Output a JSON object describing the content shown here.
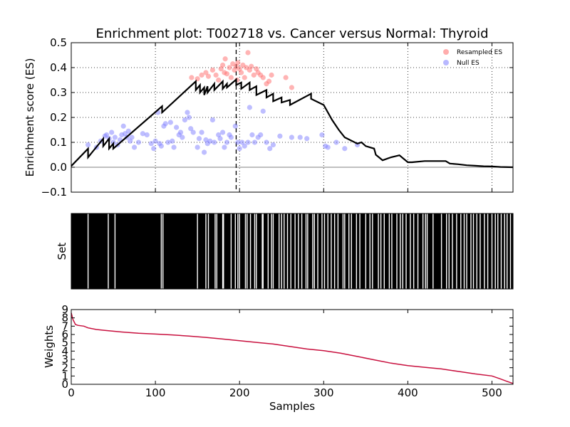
{
  "chart_data": [
    {
      "type": "line",
      "title": "Enrichment plot: T002718 vs. Cancer versus Normal: Thyroid",
      "ylabel": "Enrichment score (ES)",
      "xlim": [
        0,
        525
      ],
      "ylim": [
        -0.1,
        0.5
      ],
      "y_ticks": [
        "−0.1",
        "0.0",
        "0.1",
        "0.2",
        "0.3",
        "0.4",
        "0.5"
      ],
      "grid": true,
      "legend": {
        "placement": "top-right",
        "entries": [
          "Resampled ES",
          "Null ES"
        ]
      },
      "colors": {
        "es_line": "#000000",
        "resampled": "#ff6a6a",
        "null": "#7d7dff",
        "zero_line": "#808080"
      },
      "peak_x": 196,
      "series": [
        {
          "name": "",
          "x": [
            0,
            20,
            20,
            38,
            38,
            45,
            45,
            50,
            50,
            108,
            108,
            148,
            148,
            153,
            153,
            158,
            158,
            162,
            162,
            170,
            170,
            180,
            180,
            185,
            185,
            196,
            196,
            202,
            202,
            212,
            212,
            220,
            220,
            232,
            232,
            240,
            240,
            250,
            250,
            260,
            260,
            285,
            285,
            300,
            310,
            318,
            325,
            340,
            345,
            350,
            360,
            362,
            370,
            380,
            390,
            400,
            405,
            420,
            430,
            435,
            445,
            450,
            460,
            470,
            480,
            490,
            500,
            510,
            525
          ],
          "y": [
            0.005,
            0.075,
            0.04,
            0.115,
            0.085,
            0.115,
            0.075,
            0.095,
            0.075,
            0.245,
            0.22,
            0.345,
            0.31,
            0.33,
            0.3,
            0.32,
            0.29,
            0.325,
            0.3,
            0.335,
            0.31,
            0.345,
            0.315,
            0.335,
            0.32,
            0.352,
            0.33,
            0.34,
            0.315,
            0.34,
            0.31,
            0.325,
            0.29,
            0.31,
            0.28,
            0.295,
            0.265,
            0.28,
            0.26,
            0.27,
            0.25,
            0.295,
            0.275,
            0.25,
            0.19,
            0.15,
            0.12,
            0.095,
            0.1,
            0.085,
            0.075,
            0.05,
            0.028,
            0.04,
            0.048,
            0.02,
            0.02,
            0.025,
            0.025,
            0.025,
            0.025,
            0.015,
            0.012,
            0.008,
            0.006,
            0.004,
            0.003,
            0.001,
            0.0
          ]
        }
      ],
      "resampled_es": [
        [
          143,
          0.36
        ],
        [
          150,
          0.355
        ],
        [
          155,
          0.37
        ],
        [
          160,
          0.38
        ],
        [
          163,
          0.365
        ],
        [
          168,
          0.39
        ],
        [
          172,
          0.37
        ],
        [
          175,
          0.35
        ],
        [
          178,
          0.395
        ],
        [
          180,
          0.41
        ],
        [
          182,
          0.38
        ],
        [
          183,
          0.435
        ],
        [
          185,
          0.375
        ],
        [
          188,
          0.4
        ],
        [
          190,
          0.36
        ],
        [
          192,
          0.415
        ],
        [
          194,
          0.39
        ],
        [
          196,
          0.405
        ],
        [
          197,
          0.35
        ],
        [
          198,
          0.42
        ],
        [
          200,
          0.395
        ],
        [
          202,
          0.38
        ],
        [
          204,
          0.41
        ],
        [
          206,
          0.36
        ],
        [
          208,
          0.4
        ],
        [
          210,
          0.46
        ],
        [
          212,
          0.39
        ],
        [
          214,
          0.405
        ],
        [
          217,
          0.37
        ],
        [
          220,
          0.395
        ],
        [
          222,
          0.38
        ],
        [
          225,
          0.37
        ],
        [
          228,
          0.36
        ],
        [
          232,
          0.335
        ],
        [
          235,
          0.345
        ],
        [
          238,
          0.37
        ],
        [
          255,
          0.36
        ],
        [
          262,
          0.32
        ]
      ],
      "null_es": [
        [
          20,
          0.09
        ],
        [
          30,
          0.08
        ],
        [
          35,
          0.105
        ],
        [
          40,
          0.125
        ],
        [
          42,
          0.13
        ],
        [
          45,
          0.115
        ],
        [
          48,
          0.14
        ],
        [
          50,
          0.1
        ],
        [
          52,
          0.12
        ],
        [
          55,
          0.09
        ],
        [
          58,
          0.11
        ],
        [
          60,
          0.13
        ],
        [
          62,
          0.165
        ],
        [
          64,
          0.135
        ],
        [
          66,
          0.12
        ],
        [
          68,
          0.145
        ],
        [
          70,
          0.105
        ],
        [
          72,
          0.12
        ],
        [
          75,
          0.08
        ],
        [
          80,
          0.1
        ],
        [
          85,
          0.135
        ],
        [
          90,
          0.13
        ],
        [
          95,
          0.095
        ],
        [
          98,
          0.075
        ],
        [
          100,
          0.105
        ],
        [
          103,
          0.22
        ],
        [
          105,
          0.095
        ],
        [
          107,
          0.085
        ],
        [
          110,
          0.165
        ],
        [
          112,
          0.175
        ],
        [
          115,
          0.1
        ],
        [
          118,
          0.18
        ],
        [
          120,
          0.105
        ],
        [
          122,
          0.08
        ],
        [
          125,
          0.16
        ],
        [
          128,
          0.13
        ],
        [
          130,
          0.14
        ],
        [
          132,
          0.12
        ],
        [
          135,
          0.19
        ],
        [
          138,
          0.22
        ],
        [
          140,
          0.2
        ],
        [
          142,
          0.155
        ],
        [
          145,
          0.14
        ],
        [
          150,
          0.08
        ],
        [
          152,
          0.115
        ],
        [
          155,
          0.14
        ],
        [
          158,
          0.06
        ],
        [
          160,
          0.11
        ],
        [
          162,
          0.095
        ],
        [
          165,
          0.105
        ],
        [
          168,
          0.19
        ],
        [
          170,
          0.1
        ],
        [
          175,
          0.13
        ],
        [
          177,
          0.115
        ],
        [
          180,
          0.14
        ],
        [
          182,
          0.08
        ],
        [
          185,
          0.1
        ],
        [
          188,
          0.13
        ],
        [
          190,
          0.12
        ],
        [
          195,
          0.165
        ],
        [
          198,
          0.1
        ],
        [
          200,
          0.075
        ],
        [
          203,
          0.1
        ],
        [
          206,
          0.085
        ],
        [
          210,
          0.1
        ],
        [
          212,
          0.24
        ],
        [
          215,
          0.13
        ],
        [
          218,
          0.1
        ],
        [
          222,
          0.12
        ],
        [
          225,
          0.13
        ],
        [
          228,
          0.225
        ],
        [
          232,
          0.1
        ],
        [
          236,
          0.075
        ],
        [
          240,
          0.09
        ],
        [
          248,
          0.125
        ],
        [
          262,
          0.12
        ],
        [
          272,
          0.12
        ],
        [
          280,
          0.115
        ],
        [
          298,
          0.13
        ],
        [
          302,
          0.085
        ],
        [
          305,
          0.08
        ],
        [
          315,
          0.1
        ],
        [
          325,
          0.075
        ],
        [
          340,
          0.09
        ]
      ]
    },
    {
      "type": "heatmap",
      "ylabel": "Set",
      "xlim": [
        0,
        525
      ],
      "colors": {
        "hit": "#000000",
        "gap": "#ffffff"
      },
      "gaps": [
        20,
        44,
        52,
        107,
        109,
        150,
        160,
        163,
        171,
        173,
        180,
        181,
        190,
        195,
        198,
        200,
        207,
        209,
        213,
        218,
        220,
        227,
        228,
        234,
        238,
        240,
        247,
        250,
        253,
        257,
        261,
        266,
        270,
        274,
        279,
        281,
        287,
        289,
        293,
        298,
        301,
        305,
        309,
        313,
        317,
        323,
        325,
        330,
        333,
        339,
        343,
        350,
        355,
        358,
        365,
        368,
        372,
        378,
        381,
        387,
        391,
        394,
        398,
        403,
        407,
        412,
        418,
        421,
        423,
        430,
        440,
        446,
        449,
        453,
        458,
        463,
        467,
        470,
        475,
        478,
        482,
        486,
        491,
        495,
        500,
        504,
        507,
        511,
        515,
        518,
        522
      ]
    },
    {
      "type": "line",
      "xlabel": "Samples",
      "ylabel": "Weights",
      "xlim": [
        0,
        525
      ],
      "ylim": [
        0,
        9
      ],
      "x_ticks": [
        "0",
        "100",
        "200",
        "300",
        "400",
        "500"
      ],
      "y_ticks": [
        "0",
        "1",
        "2",
        "3",
        "4",
        "5",
        "6",
        "7",
        "8",
        "9"
      ],
      "grid": false,
      "colors": {
        "weights_line": "#c8103e"
      },
      "series": [
        {
          "name": "",
          "x": [
            0,
            2,
            5,
            8,
            15,
            20,
            30,
            40,
            60,
            80,
            100,
            120,
            140,
            160,
            180,
            200,
            220,
            240,
            260,
            280,
            300,
            320,
            340,
            360,
            380,
            400,
            420,
            440,
            460,
            480,
            500,
            510,
            518,
            525
          ],
          "y": [
            8.6,
            7.8,
            7.2,
            7.1,
            7.0,
            6.8,
            6.6,
            6.5,
            6.3,
            6.15,
            6.05,
            5.95,
            5.8,
            5.65,
            5.45,
            5.25,
            5.05,
            4.85,
            4.55,
            4.25,
            4.05,
            3.75,
            3.35,
            2.95,
            2.55,
            2.25,
            2.05,
            1.85,
            1.55,
            1.25,
            1.0,
            0.65,
            0.35,
            0.1
          ]
        }
      ]
    }
  ]
}
